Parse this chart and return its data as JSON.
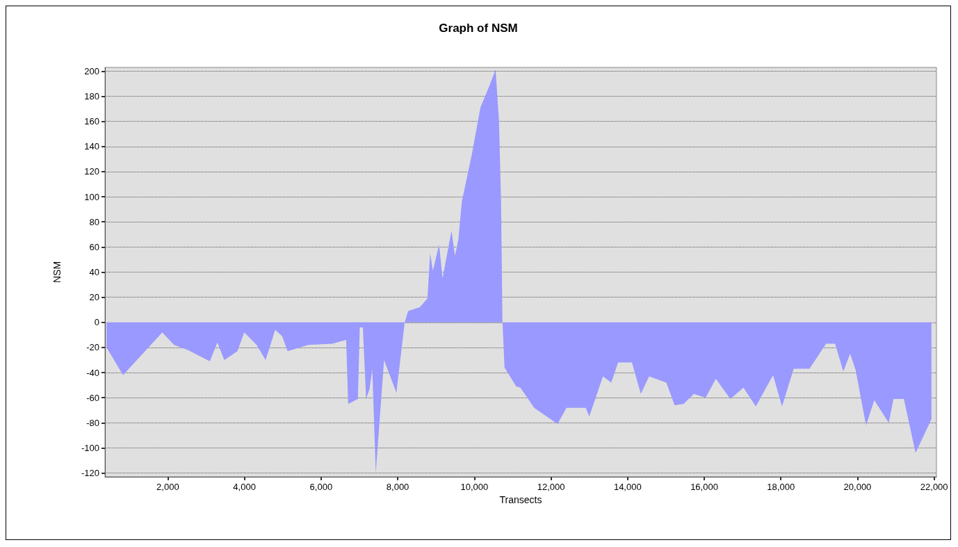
{
  "chart_data": {
    "type": "area",
    "title": "Graph of NSM",
    "xlabel": "Transects",
    "ylabel": "NSM",
    "x": [
      401,
      832,
      1856,
      2162,
      2521,
      3096,
      3294,
      3474,
      3815,
      3995,
      4318,
      4552,
      4803,
      4983,
      5127,
      5666,
      6295,
      6654,
      6708,
      6960,
      7010,
      7090,
      7175,
      7265,
      7337,
      7427,
      7643,
      7966,
      8182,
      8272,
      8577,
      8775,
      8847,
      8918,
      9080,
      9170,
      9404,
      9494,
      9583,
      9673,
      9943,
      10158,
      10374,
      10554,
      10644,
      10697,
      10733,
      10787,
      11093,
      11201,
      11560,
      12171,
      12405,
      12908,
      12998,
      13357,
      13573,
      13752,
      14112,
      14345,
      14561,
      15010,
      15226,
      15460,
      15729,
      16035,
      16304,
      16681,
      17023,
      17346,
      17796,
      18029,
      18335,
      18748,
      19179,
      19413,
      19629,
      19808,
      19952,
      20222,
      20437,
      20815,
      20940,
      21210,
      21515,
      21929
    ],
    "series": [
      {
        "color": "#9999ff",
        "values": [
          -20,
          -42,
          -8,
          -18,
          -22,
          -31,
          -16,
          -30,
          -23,
          -8,
          -18,
          -30,
          -6,
          -11,
          -23,
          -18,
          -17,
          -14,
          -65,
          -61,
          -4,
          -4,
          -61,
          -53,
          -37,
          -120,
          -30,
          -56,
          0,
          9,
          12,
          19,
          55,
          41,
          62,
          35,
          73,
          53,
          66,
          96,
          135,
          171,
          187,
          201,
          160,
          96,
          2,
          -36,
          -51,
          -52,
          -68,
          -81,
          -68,
          -68,
          -75,
          -43,
          -48,
          -32,
          -32,
          -57,
          -43,
          -48,
          -66,
          -65,
          -57,
          -60,
          -45,
          -61,
          -52,
          -67,
          -42,
          -67,
          -37,
          -37,
          -17,
          -17,
          -39,
          -25,
          -38,
          -82,
          -62,
          -80,
          -61,
          -61,
          -104,
          -77
        ]
      }
    ],
    "xlim": [
      360,
      22060
    ],
    "ylim": [
      -123,
      203
    ],
    "xticks": [
      {
        "value": 2000,
        "label": "2,000"
      },
      {
        "value": 4000,
        "label": "4,000"
      },
      {
        "value": 6000,
        "label": "6,000"
      },
      {
        "value": 8000,
        "label": "8,000"
      },
      {
        "value": 10000,
        "label": "10,000"
      },
      {
        "value": 12000,
        "label": "12,000"
      },
      {
        "value": 14000,
        "label": "14,000"
      },
      {
        "value": 16000,
        "label": "16,000"
      },
      {
        "value": 18000,
        "label": "18,000"
      },
      {
        "value": 20000,
        "label": "20,000"
      },
      {
        "value": 22000,
        "label": "22,000"
      }
    ],
    "yticks": [
      -120,
      -100,
      -80,
      -60,
      -40,
      -20,
      0,
      20,
      40,
      60,
      80,
      100,
      120,
      140,
      160,
      180,
      200
    ],
    "grid": "y"
  }
}
